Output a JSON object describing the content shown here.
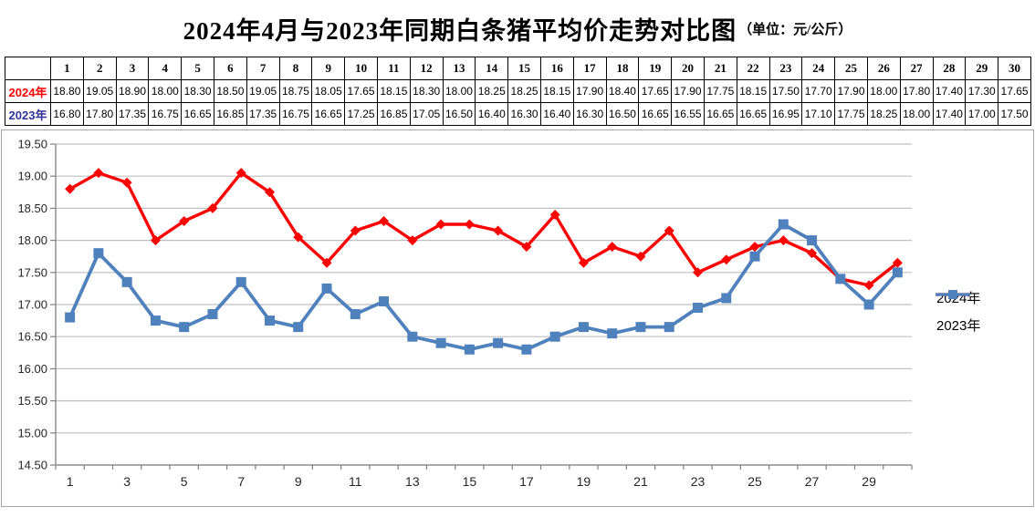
{
  "title": {
    "main": "2024年4月与2023年同期白条猪平均价走势对比图",
    "unit": "（单位：元/公斤）"
  },
  "table": {
    "corner": "",
    "row_label_colors": [
      "#FF0000",
      "#333399"
    ]
  },
  "chart_data": {
    "type": "line",
    "title": "2024年4月与2023年同期白条猪平均价走势对比图",
    "unit_label": "元/公斤",
    "categories": [
      1,
      2,
      3,
      4,
      5,
      6,
      7,
      8,
      9,
      10,
      11,
      12,
      13,
      14,
      15,
      16,
      17,
      18,
      19,
      20,
      21,
      22,
      23,
      24,
      25,
      26,
      27,
      28,
      29,
      30
    ],
    "series": [
      {
        "name": "2024年",
        "color": "#FF0000",
        "marker": "diamond",
        "line_width": 3.4,
        "values": [
          18.8,
          19.05,
          18.9,
          18.0,
          18.3,
          18.5,
          19.05,
          18.75,
          18.05,
          17.65,
          18.15,
          18.3,
          18.0,
          18.25,
          18.25,
          18.15,
          17.9,
          18.4,
          17.65,
          17.9,
          17.75,
          18.15,
          17.5,
          17.7,
          17.9,
          18.0,
          17.8,
          17.4,
          17.3,
          17.65
        ]
      },
      {
        "name": "2023年",
        "color": "#4F81BD",
        "marker": "square",
        "line_width": 3.8,
        "values": [
          16.8,
          17.8,
          17.35,
          16.75,
          16.65,
          16.85,
          17.35,
          16.75,
          16.65,
          17.25,
          16.85,
          17.05,
          16.5,
          16.4,
          16.3,
          16.4,
          16.3,
          16.5,
          16.65,
          16.55,
          16.65,
          16.65,
          16.95,
          17.1,
          17.75,
          18.25,
          18.0,
          17.4,
          17.0,
          17.5
        ]
      }
    ],
    "ylim": [
      14.5,
      19.5
    ],
    "ytick_step": 0.5,
    "xtick_label_step": 2,
    "grid": true,
    "legend_position": "right",
    "colors": {
      "grid": "#BFBFBF",
      "axis": "#808080",
      "tick_text": "#262626",
      "chart_border": "#A6A6A6"
    }
  }
}
